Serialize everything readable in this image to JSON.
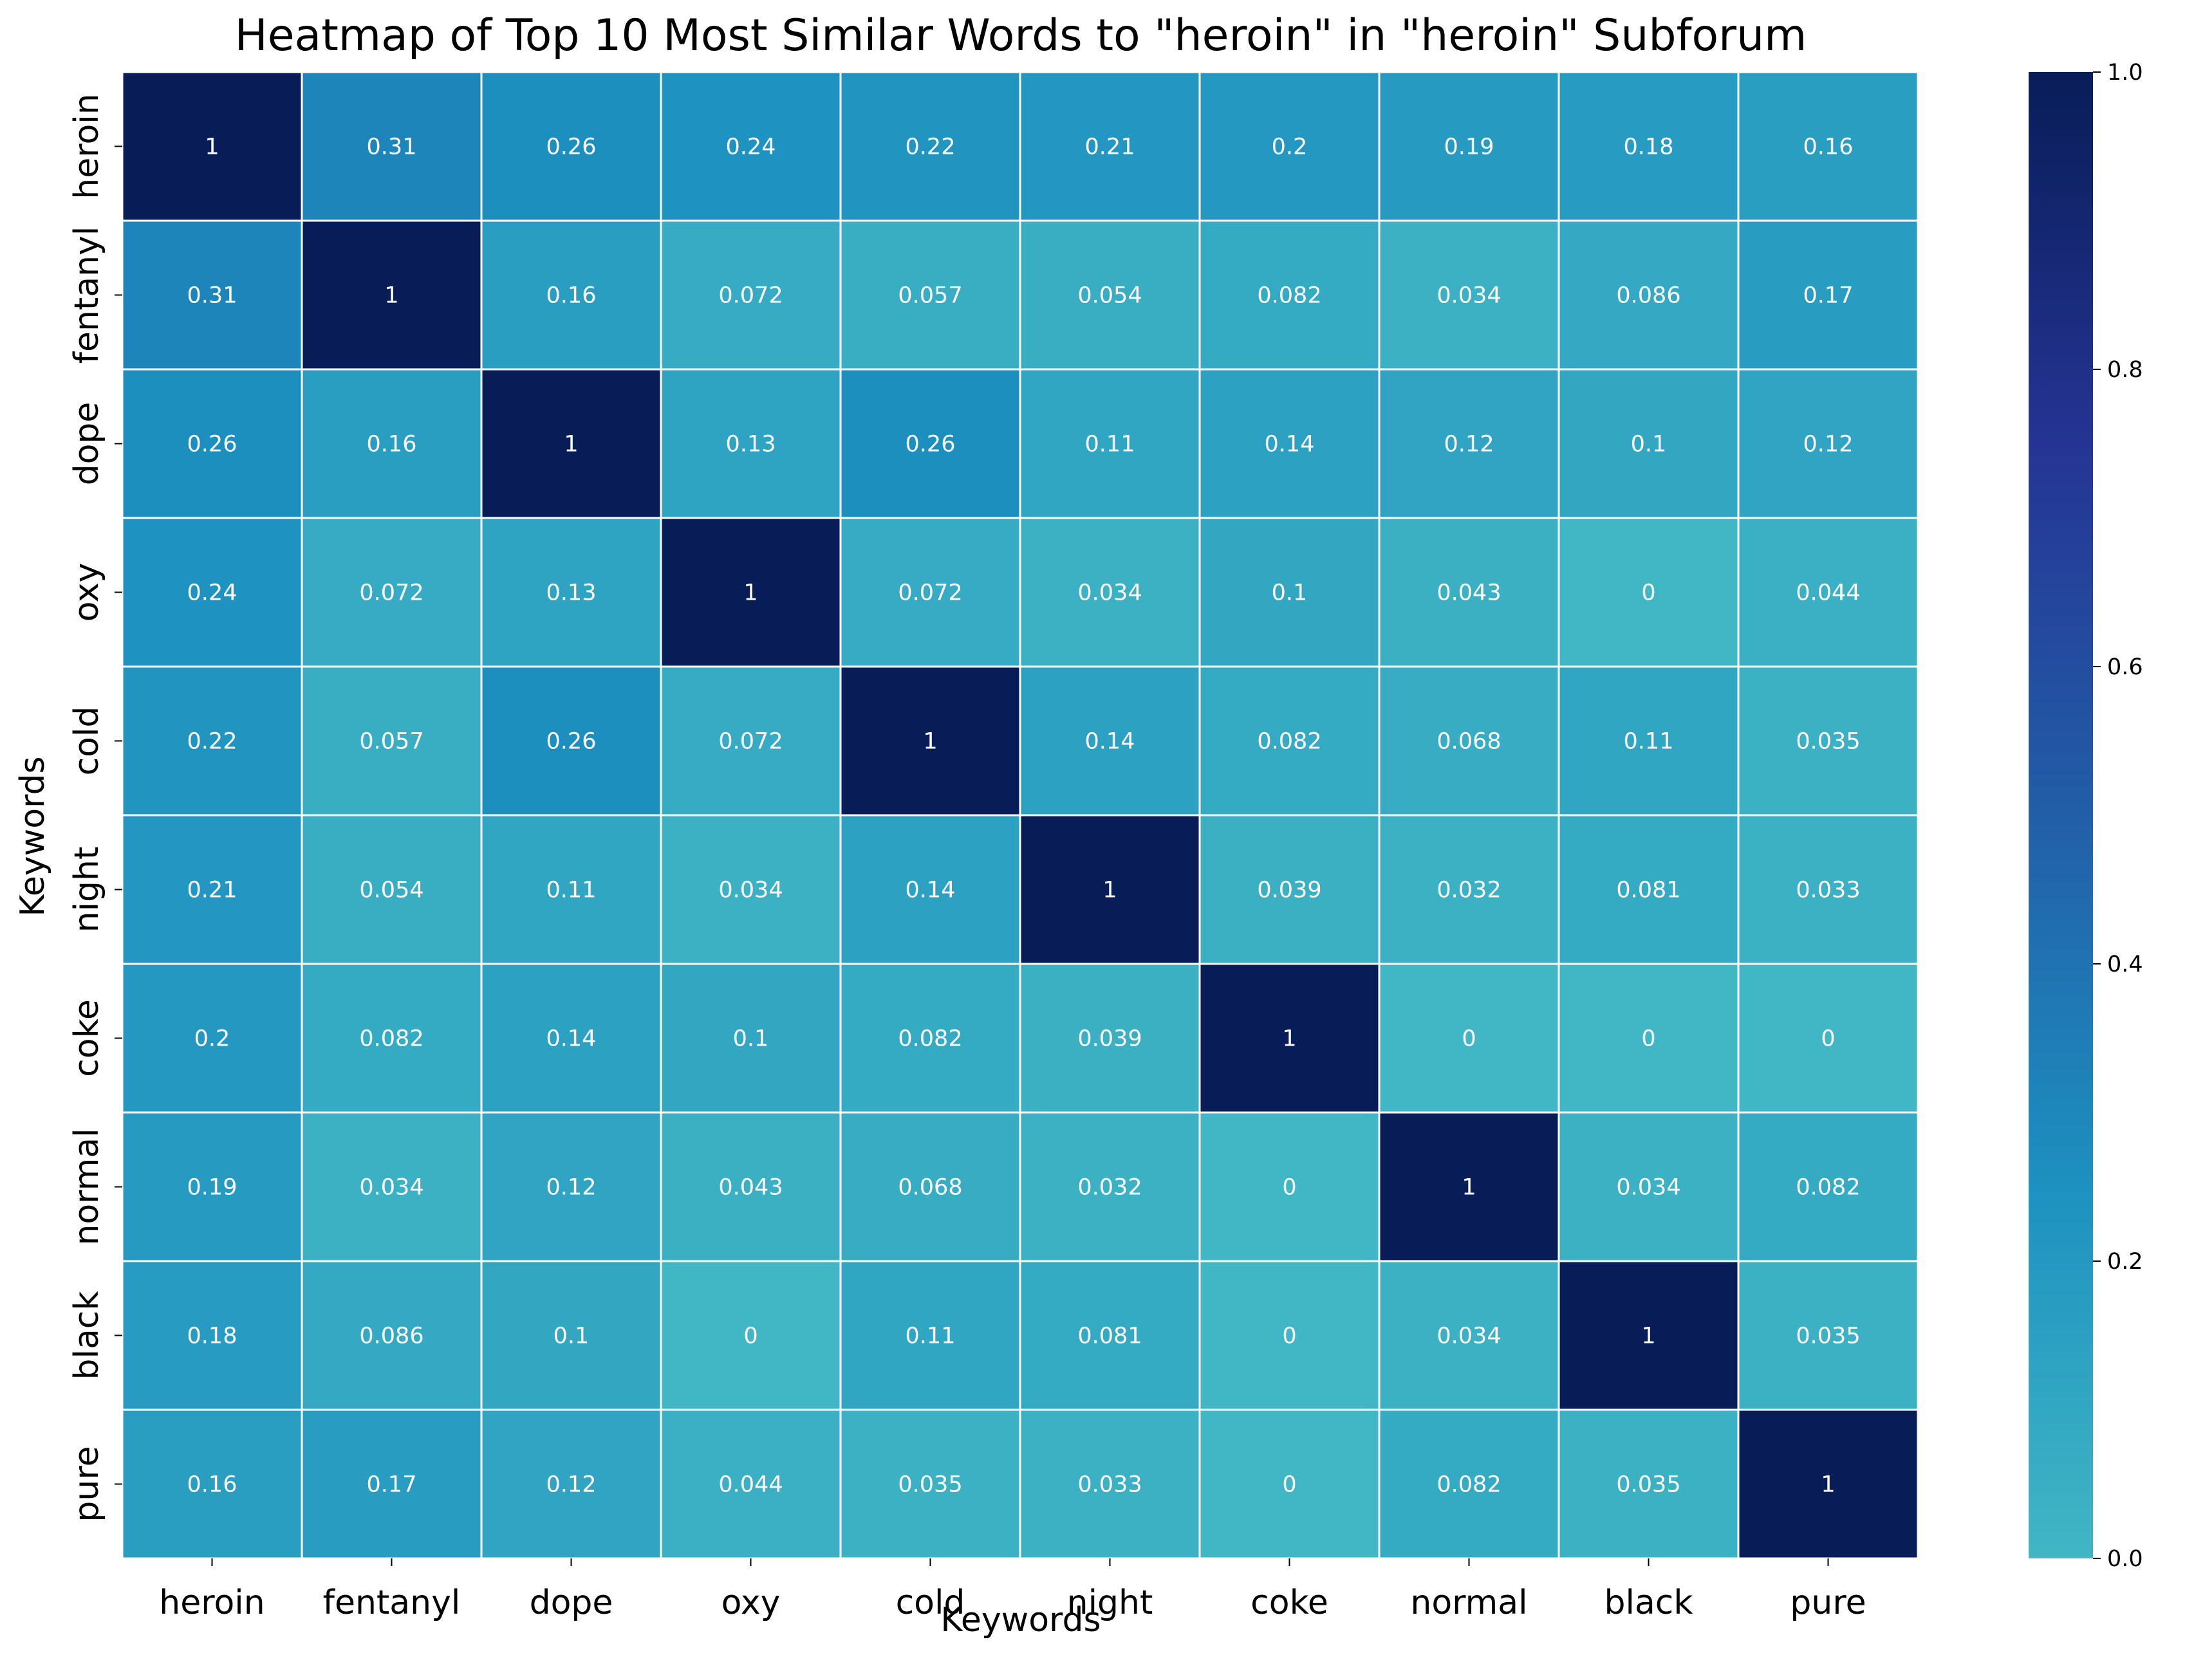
{
  "chart_data": {
    "type": "heatmap",
    "title": "Heatmap of Top 10 Most Similar Words to \"heroin\" in \"heroin\" Subforum",
    "xlabel": "Keywords",
    "ylabel": "Keywords",
    "x_categories": [
      "heroin",
      "fentanyl",
      "dope",
      "oxy",
      "cold",
      "night",
      "coke",
      "normal",
      "black",
      "pure"
    ],
    "y_categories": [
      "heroin",
      "fentanyl",
      "dope",
      "oxy",
      "cold",
      "night",
      "coke",
      "normal",
      "black",
      "pure"
    ],
    "values": [
      [
        "1",
        "0.31",
        "0.26",
        "0.24",
        "0.22",
        "0.21",
        "0.2",
        "0.19",
        "0.18",
        "0.16"
      ],
      [
        "0.31",
        "1",
        "0.16",
        "0.072",
        "0.057",
        "0.054",
        "0.082",
        "0.034",
        "0.086",
        "0.17"
      ],
      [
        "0.26",
        "0.16",
        "1",
        "0.13",
        "0.26",
        "0.11",
        "0.14",
        "0.12",
        "0.1",
        "0.12"
      ],
      [
        "0.24",
        "0.072",
        "0.13",
        "1",
        "0.072",
        "0.034",
        "0.1",
        "0.043",
        "0",
        "0.044"
      ],
      [
        "0.22",
        "0.057",
        "0.26",
        "0.072",
        "1",
        "0.14",
        "0.082",
        "0.068",
        "0.11",
        "0.035"
      ],
      [
        "0.21",
        "0.054",
        "0.11",
        "0.034",
        "0.14",
        "1",
        "0.039",
        "0.032",
        "0.081",
        "0.033"
      ],
      [
        "0.2",
        "0.082",
        "0.14",
        "0.1",
        "0.082",
        "0.039",
        "1",
        "0",
        "0",
        "0"
      ],
      [
        "0.19",
        "0.034",
        "0.12",
        "0.043",
        "0.068",
        "0.032",
        "0",
        "1",
        "0.034",
        "0.082"
      ],
      [
        "0.18",
        "0.086",
        "0.1",
        "0",
        "0.11",
        "0.081",
        "0",
        "0.034",
        "1",
        "0.035"
      ],
      [
        "0.16",
        "0.17",
        "0.12",
        "0.044",
        "0.035",
        "0.033",
        "0",
        "0.082",
        "0.035",
        "1"
      ]
    ],
    "colorbar": {
      "range": [
        0,
        1
      ],
      "ticks": [
        "0.0",
        "0.2",
        "0.4",
        "0.6",
        "0.8",
        "1.0"
      ],
      "colormap": "YlGnBu (upper portion)",
      "colors": [
        "#41b6c4",
        "#1d91c0",
        "#225ea8",
        "#253494",
        "#081d58"
      ]
    },
    "annot": true,
    "cell_border_color": "#ffffff"
  }
}
